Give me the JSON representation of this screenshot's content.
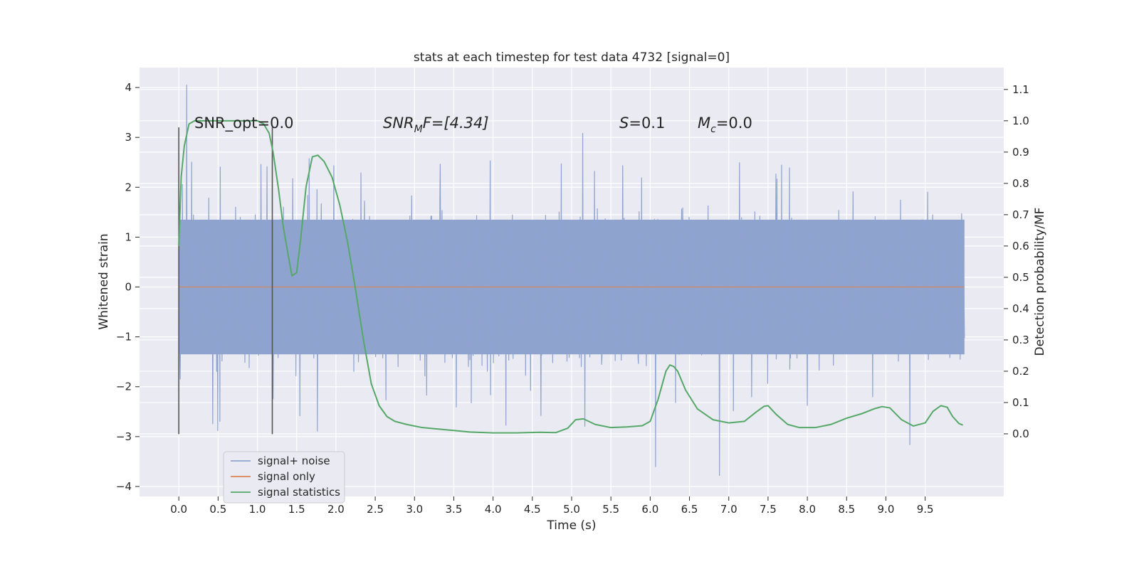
{
  "chart_data": {
    "type": "line",
    "title": "stats at each timestep for test data 4732 [signal=0]",
    "xlabel": "Time (s)",
    "ylabel_left": "Whitened strain",
    "ylabel_right": "Detection probability/MF",
    "xlim": [
      -0.5,
      10.5
    ],
    "ylim_left": [
      -4.2,
      4.4
    ],
    "ylim_right": [
      -0.2,
      1.17
    ],
    "x_ticks": [
      "0.0",
      "0.5",
      "1.0",
      "1.5",
      "2.0",
      "2.5",
      "3.0",
      "3.5",
      "4.0",
      "4.5",
      "5.0",
      "5.5",
      "6.0",
      "6.5",
      "7.0",
      "7.5",
      "8.0",
      "8.5",
      "9.0",
      "9.5"
    ],
    "y_ticks_left": [
      "4",
      "3",
      "2",
      "1",
      "0",
      "−1",
      "−2",
      "−3",
      "−4"
    ],
    "y_ticks_right": [
      "0.0",
      "0.1",
      "0.2",
      "0.3",
      "0.4",
      "0.5",
      "0.6",
      "0.7",
      "0.8",
      "0.9",
      "1.0",
      "1.1"
    ],
    "grid": true,
    "legend_position": "lower-left",
    "legend": [
      "signal+ noise",
      "signal only",
      "signal statistics"
    ],
    "colors": {
      "signal_noise": "#8fa3cf",
      "signal_only": "#dd8452",
      "signal_statistics": "#55a868",
      "vline": "#555555",
      "background": "#eaeaf2"
    },
    "annotations": {
      "snr_opt": "SNR_opt=0.0",
      "snr_mf_main": "SNR",
      "snr_mf_sub": "M",
      "snr_mf_rest": "F=[4.34]",
      "s_main": "S",
      "s_rest": "=0.1",
      "mc_main": "M",
      "mc_sub": "c",
      "mc_rest": "=0.0"
    },
    "vertical_lines_x": [
      0.0,
      1.19
    ],
    "vertical_lines_yrange": [
      -2.95,
      3.2
    ],
    "signal_noise": {
      "x_range": [
        0.0,
        10.0
      ],
      "core_amplitude": 1.35,
      "max_value": 4.05,
      "min_value": -3.78
    },
    "signal_only": {
      "x": [
        0.0,
        10.0
      ],
      "y": [
        0.0,
        0.0
      ]
    },
    "signal_statistics": {
      "x": [
        0.0,
        0.03,
        0.07,
        0.13,
        0.2,
        0.3,
        0.45,
        0.6,
        0.75,
        0.9,
        1.0,
        1.08,
        1.15,
        1.2,
        1.27,
        1.33,
        1.4,
        1.44,
        1.5,
        1.55,
        1.62,
        1.7,
        1.77,
        1.85,
        1.95,
        2.05,
        2.15,
        2.25,
        2.35,
        2.45,
        2.55,
        2.65,
        2.75,
        2.9,
        3.1,
        3.4,
        3.7,
        4.0,
        4.3,
        4.6,
        4.8,
        4.95,
        5.05,
        5.15,
        5.3,
        5.5,
        5.7,
        5.9,
        6.0,
        6.1,
        6.2,
        6.25,
        6.3,
        6.35,
        6.45,
        6.6,
        6.8,
        7.0,
        7.2,
        7.35,
        7.45,
        7.5,
        7.6,
        7.75,
        7.9,
        8.1,
        8.3,
        8.5,
        8.7,
        8.85,
        8.95,
        9.05,
        9.2,
        9.35,
        9.5,
        9.6,
        9.7,
        9.78,
        9.85,
        9.93,
        9.98
      ],
      "y": [
        0.6,
        0.82,
        0.92,
        0.99,
        1.0,
        1.0,
        1.0,
        1.0,
        1.0,
        1.0,
        1.0,
        0.99,
        0.96,
        0.9,
        0.78,
        0.66,
        0.56,
        0.505,
        0.515,
        0.62,
        0.79,
        0.885,
        0.89,
        0.87,
        0.82,
        0.73,
        0.61,
        0.46,
        0.3,
        0.16,
        0.09,
        0.055,
        0.04,
        0.03,
        0.02,
        0.013,
        0.006,
        0.003,
        0.003,
        0.005,
        0.004,
        0.018,
        0.045,
        0.048,
        0.03,
        0.02,
        0.022,
        0.026,
        0.04,
        0.11,
        0.2,
        0.22,
        0.215,
        0.2,
        0.14,
        0.08,
        0.045,
        0.035,
        0.04,
        0.07,
        0.088,
        0.09,
        0.063,
        0.03,
        0.02,
        0.02,
        0.03,
        0.05,
        0.065,
        0.08,
        0.087,
        0.083,
        0.045,
        0.025,
        0.035,
        0.072,
        0.09,
        0.085,
        0.055,
        0.033,
        0.028
      ]
    }
  }
}
